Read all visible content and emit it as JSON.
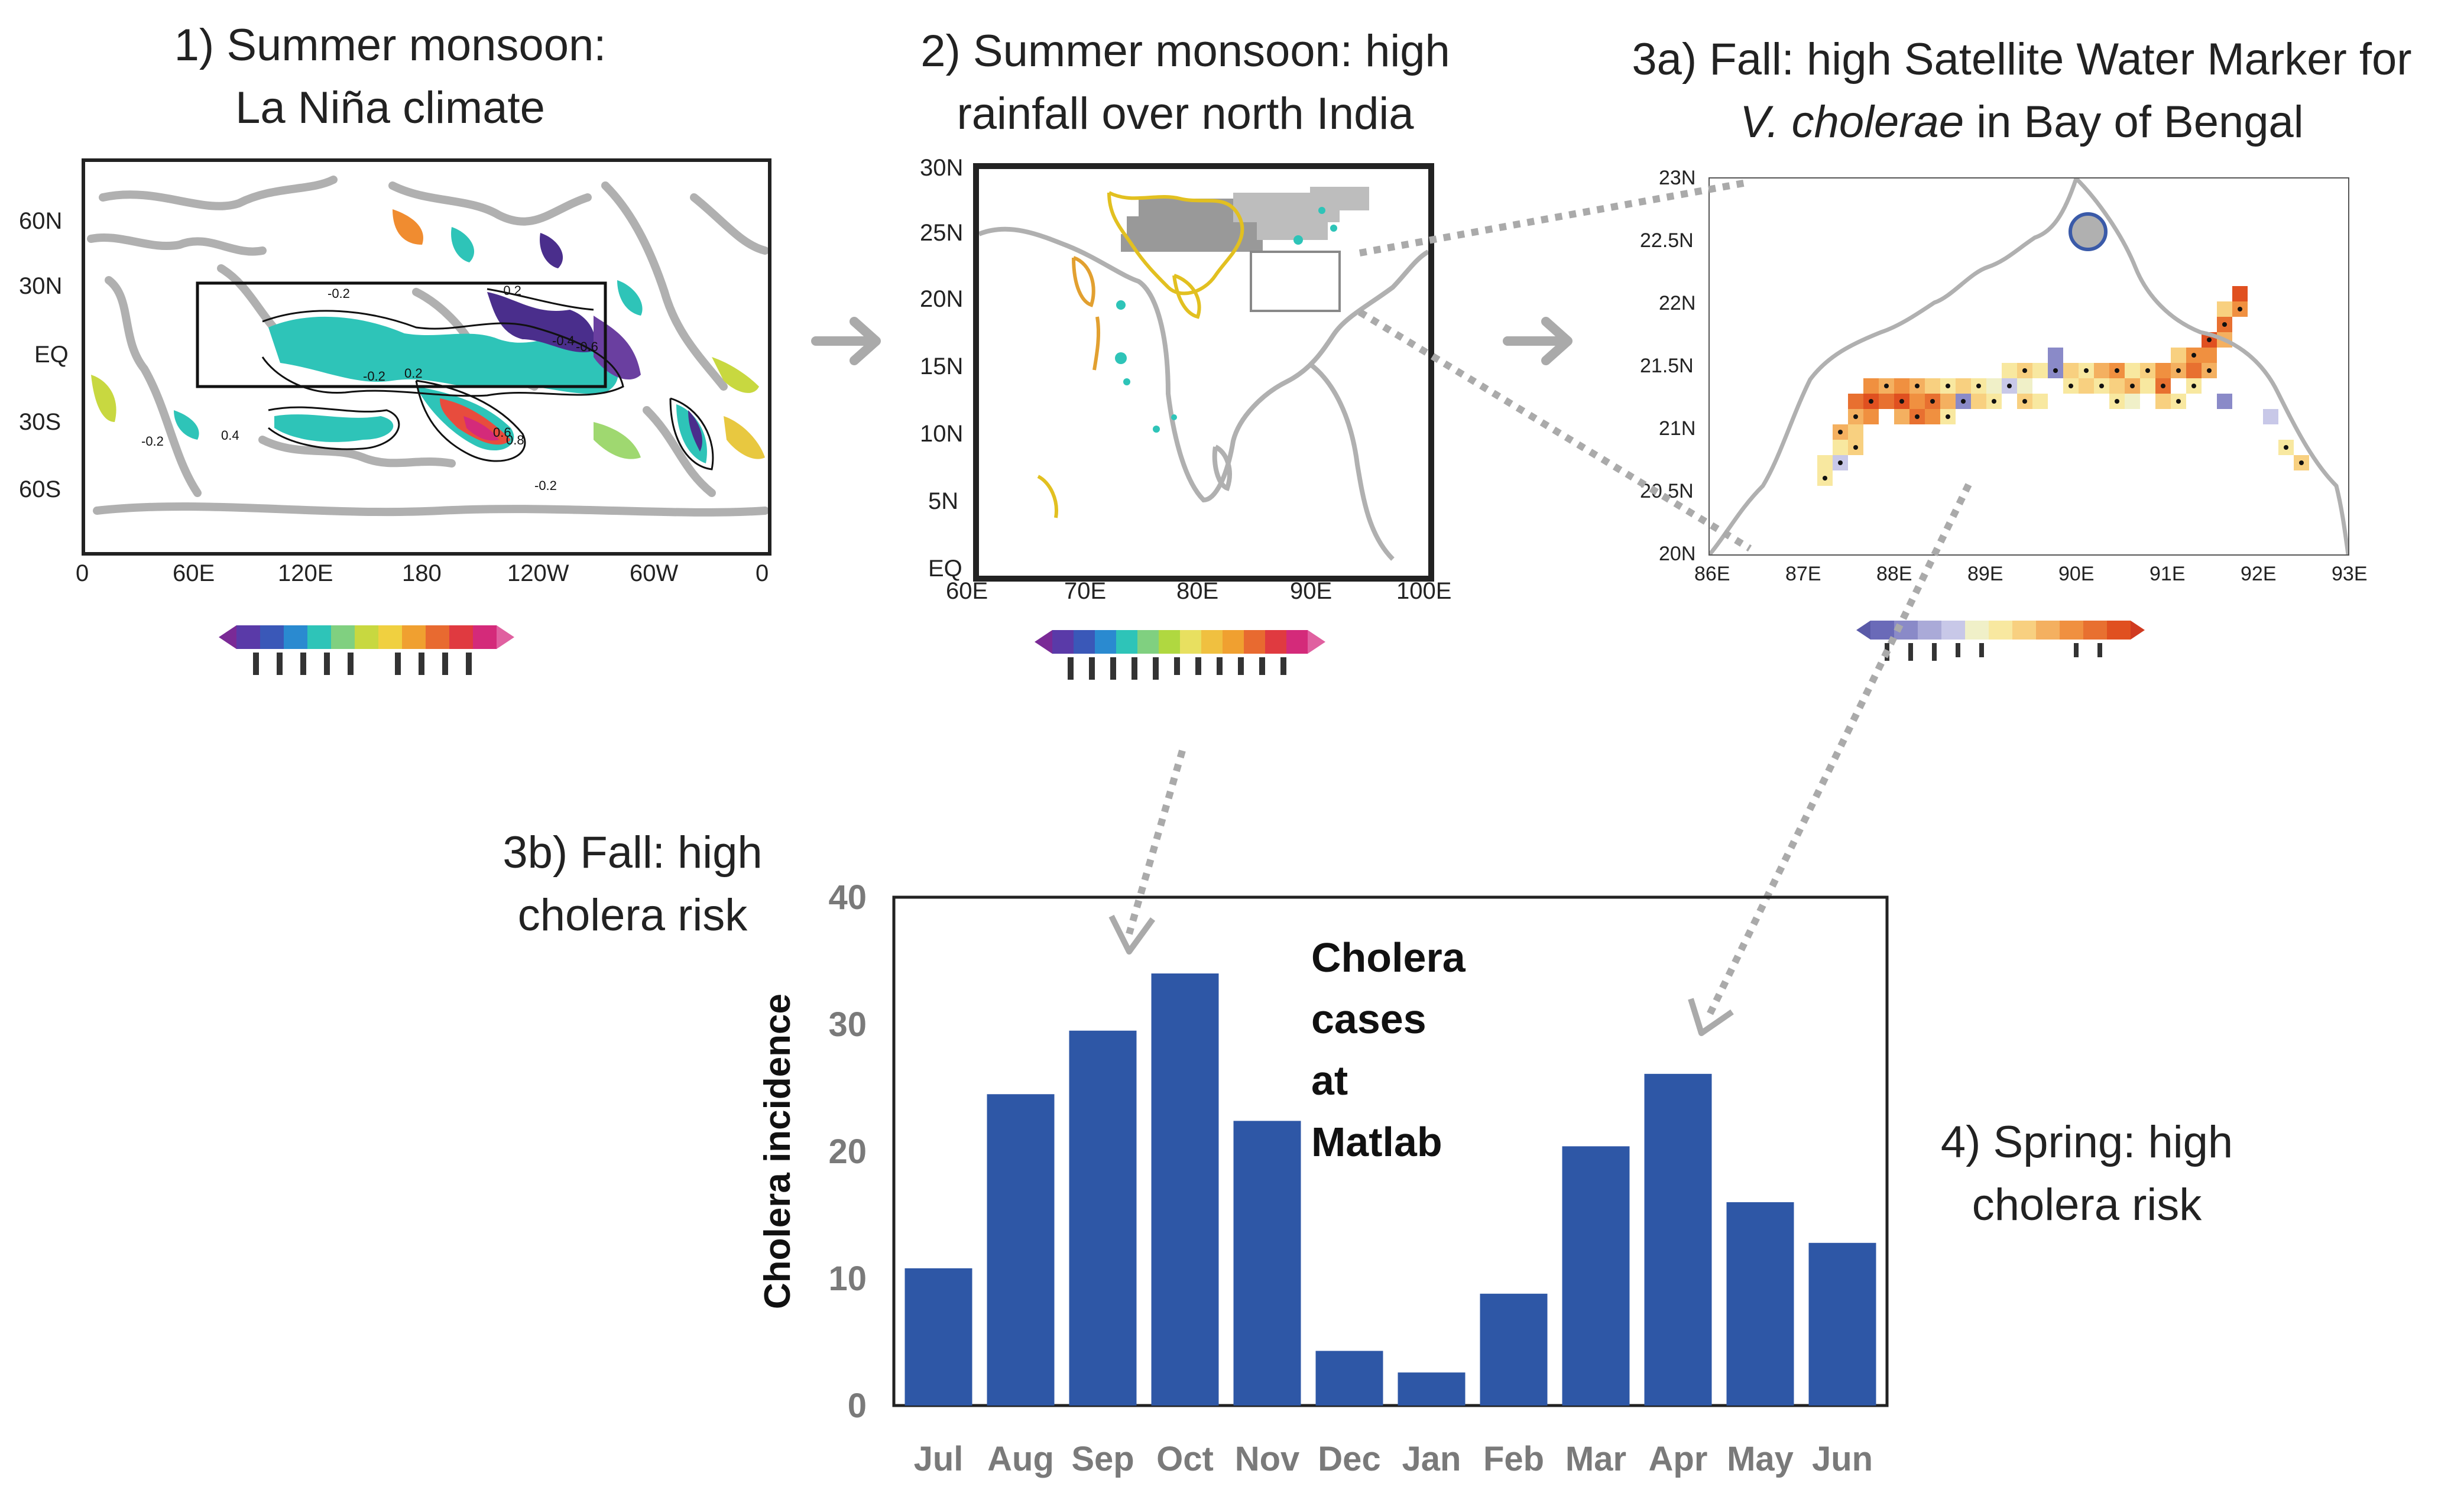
{
  "captions": {
    "c1_line1": "1) Summer monsoon:",
    "c1_line2": "La Niña climate",
    "c2_line1": "2) Summer monsoon: high",
    "c2_line2": "rainfall over north India",
    "c3a_line1": "3a) Fall: high Satellite Water Marker for",
    "c3a_line2_italic": "V. cholerae",
    "c3a_line2_rest": " in Bay of Bengal",
    "c3b_line1": "3b) Fall: high",
    "c3b_line2": "cholera risk",
    "c4_line1": "4) Spring: high",
    "c4_line2": "cholera risk"
  },
  "map1": {
    "lat_ticks": [
      "60N",
      "30N",
      "EQ",
      "30S",
      "60S"
    ],
    "lon_ticks": [
      "0",
      "60E",
      "120E",
      "180",
      "120W",
      "60W",
      "0"
    ],
    "contour_labels": [
      "-0.2",
      "-0.2",
      "-0.4",
      "-0.6",
      "-0.2",
      "0.2",
      "0.6",
      "0.8",
      "-0.2",
      "0.4",
      "-0.2"
    ]
  },
  "map2": {
    "lat_ticks": [
      "30N",
      "25N",
      "20N",
      "15N",
      "10N",
      "5N",
      "EQ"
    ],
    "lon_ticks": [
      "60E",
      "70E",
      "80E",
      "90E",
      "100E"
    ]
  },
  "map3": {
    "lat_ticks": [
      "23N",
      "22.5N",
      "22N",
      "21.5N",
      "21N",
      "20.5N",
      "20N"
    ],
    "lon_ticks": [
      "86E",
      "87E",
      "88E",
      "89E",
      "90E",
      "91E",
      "92E",
      "93E"
    ]
  },
  "colors": {
    "bar": "#2e57a6",
    "arrow": "#aaaaaa",
    "dotted": "#aaaaaa"
  },
  "chart_data": {
    "type": "bar",
    "title_line1": "Cholera cases",
    "title_line2": "at Matlab",
    "ylabel": "Cholera incidence",
    "xlabel": "",
    "categories": [
      "Jul",
      "Aug",
      "Sep",
      "Oct",
      "Nov",
      "Dec",
      "Jan",
      "Feb",
      "Mar",
      "Apr",
      "May",
      "Jun"
    ],
    "values": [
      10.8,
      24.5,
      29.5,
      34.0,
      22.4,
      4.3,
      2.6,
      8.8,
      20.4,
      26.1,
      16.0,
      12.8
    ],
    "ylim": [
      0,
      40
    ],
    "yticks": [
      0,
      10,
      20,
      30,
      40
    ],
    "ytick_labels": [
      "0",
      "10",
      "20",
      "30",
      "40"
    ]
  }
}
